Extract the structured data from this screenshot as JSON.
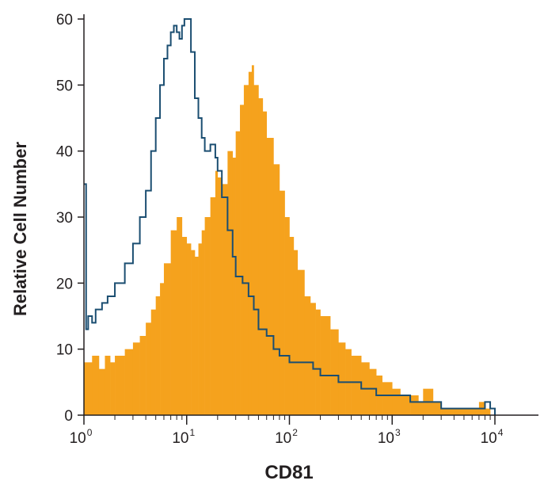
{
  "chart_data": {
    "type": "histogram",
    "title": "",
    "xlabel": "CD81",
    "ylabel": "Relative Cell Number",
    "xscale": "log",
    "xlim": [
      1,
      10000
    ],
    "ylim": [
      0,
      60
    ],
    "x_ticks": [
      {
        "value": 1,
        "base": "10",
        "exp": "0"
      },
      {
        "value": 10,
        "base": "10",
        "exp": "1"
      },
      {
        "value": 100,
        "base": "10",
        "exp": "2"
      },
      {
        "value": 1000,
        "base": "10",
        "exp": "3"
      },
      {
        "value": 10000,
        "base": "10",
        "exp": "4"
      }
    ],
    "y_ticks": [
      "0",
      "10",
      "20",
      "30",
      "40",
      "50",
      "60"
    ],
    "series": [
      {
        "style": "filled",
        "color": "#f5a21d",
        "x": [
          1,
          1.2,
          1.4,
          1.6,
          1.8,
          2,
          2.5,
          3,
          3.5,
          4,
          4.5,
          5,
          5.5,
          6,
          7,
          8,
          9,
          10,
          11,
          12,
          13,
          14,
          15,
          17,
          19,
          20,
          22,
          25,
          28,
          30,
          33,
          36,
          40,
          43,
          45,
          50,
          55,
          60,
          70,
          80,
          90,
          100,
          110,
          120,
          140,
          160,
          180,
          200,
          250,
          300,
          350,
          400,
          500,
          600,
          700,
          800,
          1000,
          1200,
          1500,
          1800,
          2000,
          2500,
          3000,
          4000,
          5000,
          6000,
          7000,
          8000,
          9000,
          10000
        ],
        "y": [
          8,
          9,
          7,
          9,
          8,
          9,
          10,
          11,
          12,
          14,
          16,
          18,
          20,
          23,
          28,
          30,
          27,
          26,
          25,
          24,
          26,
          28,
          30,
          33,
          37,
          36,
          35,
          40,
          39,
          43,
          47,
          50,
          52,
          53,
          50,
          48,
          46,
          42,
          38,
          34,
          30,
          27,
          25,
          22,
          18,
          17,
          16,
          15,
          13,
          11,
          10,
          9,
          8,
          7,
          6,
          5,
          4,
          3,
          3,
          2,
          4,
          2,
          1,
          1,
          1,
          1,
          2,
          1,
          0,
          0
        ]
      },
      {
        "style": "outline",
        "color": "#1b4e71",
        "x": [
          1,
          1.05,
          1.1,
          1.2,
          1.3,
          1.5,
          1.7,
          2,
          2.5,
          3,
          3.5,
          4,
          4.5,
          5,
          5.5,
          6,
          6.5,
          7,
          7.5,
          8,
          8.5,
          9,
          9.5,
          10,
          11,
          12,
          13,
          14,
          15,
          17,
          19,
          20,
          22,
          25,
          28,
          30,
          35,
          40,
          45,
          50,
          60,
          70,
          80,
          100,
          130,
          170,
          200,
          300,
          400,
          500,
          700,
          1000,
          1500,
          2000,
          3000,
          4000,
          5000,
          7000,
          8000,
          9000,
          10000
        ],
        "y": [
          35,
          13,
          15,
          14,
          16,
          17,
          18,
          20,
          23,
          26,
          30,
          34,
          40,
          45,
          50,
          54,
          56,
          58,
          59,
          58,
          57,
          59,
          60,
          60,
          55,
          48,
          45,
          42,
          40,
          41,
          39,
          37,
          33,
          28,
          24,
          21,
          20,
          18,
          16,
          13,
          12,
          10,
          9,
          8,
          8,
          7,
          6,
          5,
          5,
          4,
          3,
          3,
          2,
          2,
          1,
          1,
          1,
          1,
          2,
          1,
          0
        ]
      }
    ]
  }
}
